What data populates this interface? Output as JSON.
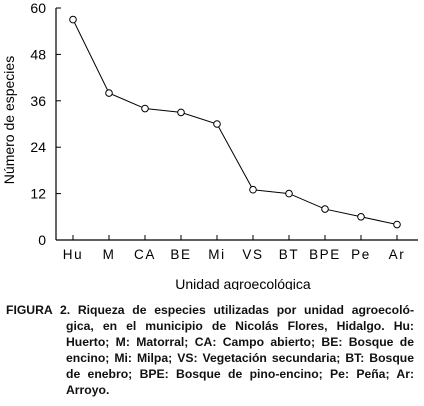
{
  "chart_data": {
    "type": "line",
    "categories": [
      "Hu",
      "M",
      "CA",
      "BE",
      "Mi",
      "VS",
      "BT",
      "BPE",
      "Pe",
      "Ar"
    ],
    "values": [
      57,
      38,
      34,
      33,
      30,
      13,
      12,
      8,
      6,
      4
    ],
    "ylim": [
      0,
      60
    ],
    "yticks": [
      0,
      12,
      24,
      36,
      48,
      60
    ],
    "xlabel": "Unidad agroecológica",
    "ylabel": "Número de especies",
    "marker": "open-circle",
    "line_color": "#000000",
    "grid": false
  },
  "caption": {
    "head": "FIGURA 2. Riqueza de especies utilizadas por unidad agroecoló-",
    "rest": "gica, en el municipio de Nicolás Flores, Hidalgo. Hu: Huerto; M: Matorral; CA: Campo abierto; BE: Bosque de encino; Mi: Milpa; VS: Vegetación secundaria; BT: Bosque de enebro; BPE: Bosque de pino-encino; Pe: Peña; Ar: Arroyo."
  }
}
